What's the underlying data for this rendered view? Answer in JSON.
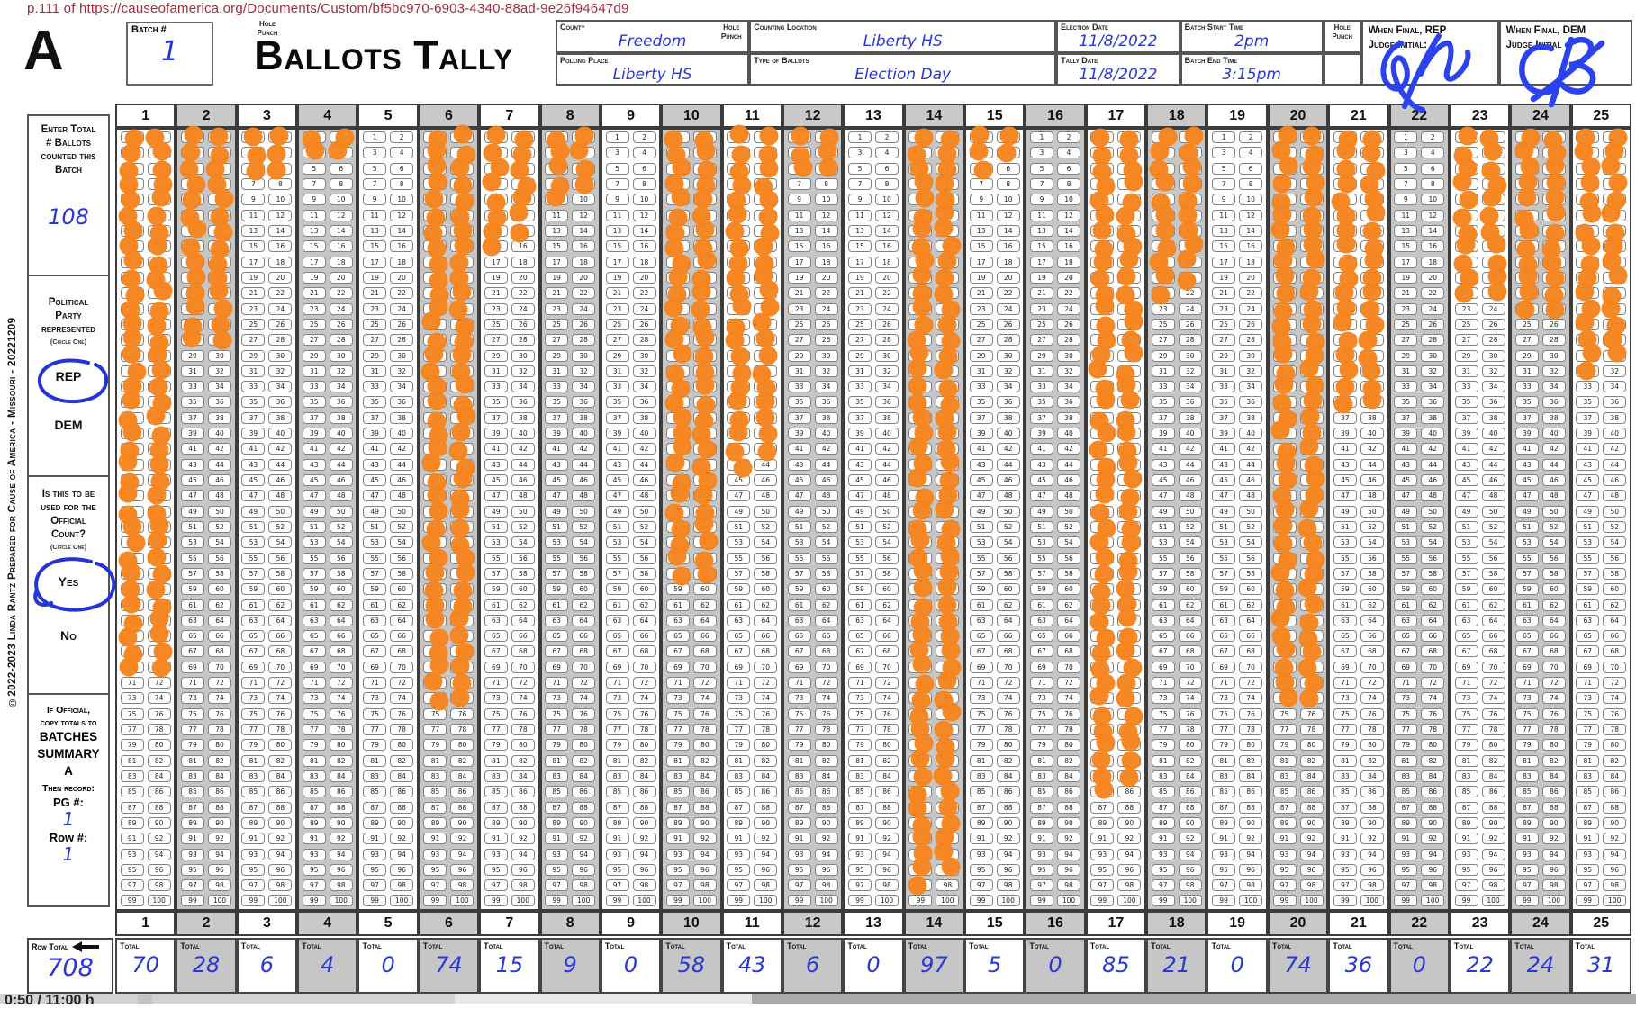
{
  "page": {
    "url_note": "p.111 of https://causeofamerica.org/Documents/Custom/bf5bc970-6903-4340-88ad-9e26f94647d9",
    "corner_letter": "A",
    "title": "Ballots Tally",
    "hole_punch_label": "Hole\nPunch"
  },
  "batch": {
    "label": "Batch #",
    "value": "1"
  },
  "header_fields": {
    "county": {
      "label": "County",
      "value": "Freedom"
    },
    "polling_place": {
      "label": "Polling Place",
      "value": "Liberty HS"
    },
    "counting_location": {
      "label": "Counting Location",
      "value": "Liberty HS"
    },
    "type_of_ballots": {
      "label": "Type of Ballots",
      "value": "Election Day"
    },
    "election_date": {
      "label": "Election Date",
      "value": "11/8/2022"
    },
    "tally_date": {
      "label": "Tally Date",
      "value": "11/8/2022"
    },
    "batch_start_time": {
      "label": "Batch Start Time",
      "value": "2pm"
    },
    "batch_end_time": {
      "label": "Batch End Time",
      "value": "3:15pm"
    },
    "rep_judge": {
      "label": "When Final, REP\nJudge Initial:",
      "initials": "JW"
    },
    "dem_judge": {
      "label": "When Final, DEM\nJudge Initial",
      "initials": "CB"
    }
  },
  "sidebar": {
    "copyright_vertical": "©2022-2023 Linda Rantz Prepared for Cause of America - Missouri  -  20221209",
    "ballot_count": {
      "label": "Enter Total\n# Ballots\ncounted this\nBatch",
      "value": "108"
    },
    "party": {
      "label": "Political\nParty\nrepresented",
      "circle_note": "(Circle One)",
      "option_rep": "REP",
      "option_dem": "DEM",
      "circled": "REP"
    },
    "official": {
      "label": "Is this to be\nused for the\nOfficial\nCount?",
      "circle_note": "(Circle One)",
      "option_yes": "Yes",
      "option_no": "No",
      "circled": "Yes"
    },
    "if_official": {
      "intro": "If Official,\ncopy totals to",
      "batches_summary": "BATCHES\nSUMMARY\nA",
      "then_record": "Then record:",
      "pg_label": "PG #:",
      "pg_value": "1",
      "row_label": "Row #:",
      "row_value": "1"
    }
  },
  "grid": {
    "columns": 25,
    "cells_per_column": 100,
    "filled_counts": [
      70,
      28,
      6,
      4,
      0,
      74,
      15,
      9,
      0,
      58,
      43,
      6,
      0,
      97,
      5,
      0,
      85,
      21,
      0,
      74,
      36,
      0,
      22,
      24,
      31
    ],
    "row_total": 708
  },
  "totals_row": {
    "row_total_label": "Row Total",
    "row_total_value": "708",
    "total_label": "Total"
  },
  "video_bar": {
    "time_text": "0:50 / 11:00 h"
  },
  "colors": {
    "dot_orange": "#F6851F",
    "handwriting_blue": "#2837D8",
    "signature_blue": "#2B43EE",
    "url_red": "#A22C3A",
    "column_grey": "#C6C6C6"
  }
}
